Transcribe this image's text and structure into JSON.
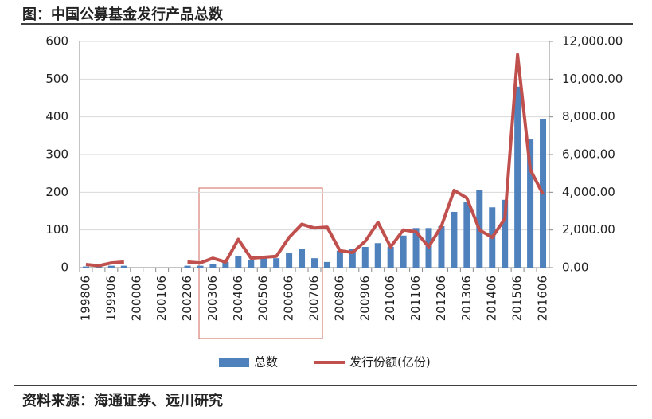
{
  "chart_data": {
    "type": "bar",
    "title": "图：中国公募基金发行产品总数",
    "source": "资料来源：海通证券、远川研究",
    "categories": [
      "199806",
      null,
      "199906",
      null,
      "200006",
      null,
      "200106",
      null,
      "200206",
      null,
      "200306",
      null,
      "200406",
      null,
      "200506",
      null,
      "200606",
      null,
      "200706",
      null,
      "200806",
      null,
      "200906",
      null,
      "201006",
      null,
      "201106",
      null,
      "201206",
      null,
      "201306",
      null,
      "201406",
      null,
      "201506",
      null,
      "201606"
    ],
    "series": [
      {
        "name": "总数",
        "color": "#4f81bd",
        "values": [
          3,
          3,
          5,
          5,
          0,
          0,
          0,
          0,
          5,
          5,
          10,
          15,
          30,
          20,
          25,
          25,
          38,
          50,
          25,
          15,
          45,
          50,
          55,
          65,
          55,
          85,
          105,
          105,
          110,
          148,
          175,
          205,
          160,
          180,
          480,
          340,
          393
        ]
      },
      {
        "name": "发行份额(亿份)",
        "color": "#c0504d",
        "type": "line",
        "axis": "y2",
        "values": [
          170,
          100,
          250,
          300,
          null,
          null,
          null,
          null,
          300,
          250,
          500,
          300,
          1500,
          500,
          550,
          600,
          1600,
          2300,
          2100,
          2150,
          900,
          800,
          1400,
          2400,
          1100,
          2000,
          1900,
          1100,
          2200,
          4100,
          3700,
          2000,
          1600,
          2600,
          11300,
          5200,
          3900
        ]
      }
    ],
    "ylim": [
      0,
      600
    ],
    "yticks": [
      0,
      100,
      200,
      300,
      400,
      500,
      600
    ],
    "y2lim": [
      0,
      12000
    ],
    "y2ticks": [
      {
        "value": 0,
        "label": "0.00"
      },
      {
        "value": 2000,
        "label": "2,000.00"
      },
      {
        "value": 4000,
        "label": "4,000.00"
      },
      {
        "value": 6000,
        "label": "6,000.00"
      },
      {
        "value": 8000,
        "label": "8,000.00"
      },
      {
        "value": 10000,
        "label": "10,000.00"
      },
      {
        "value": 12000,
        "label": "12,000.00"
      }
    ],
    "grid": true
  }
}
